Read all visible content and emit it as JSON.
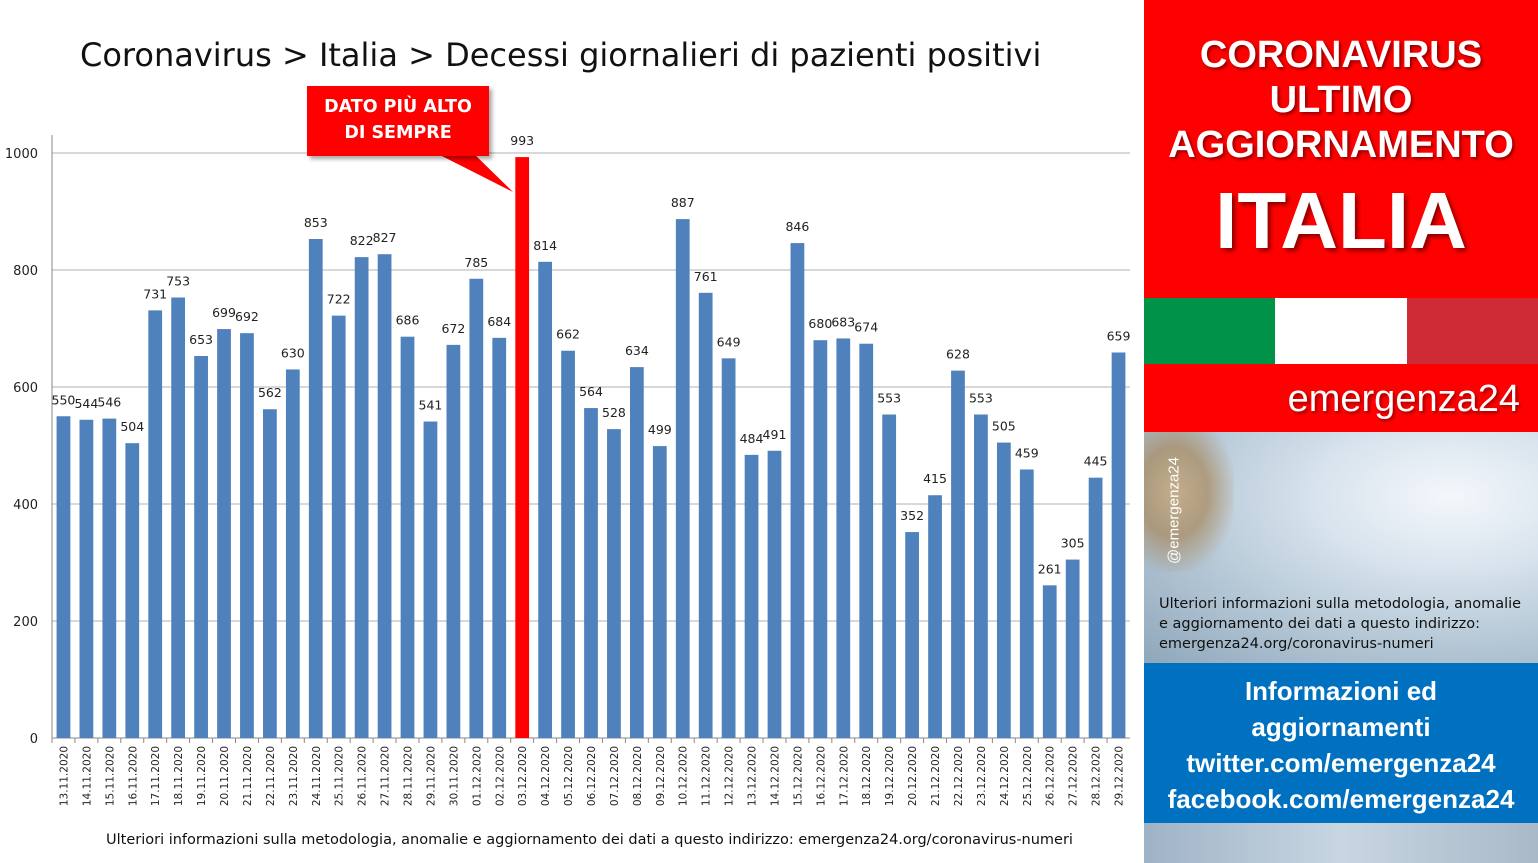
{
  "title": "Coronavirus > Italia > Decessi giornalieri di pazienti positivi",
  "callout": {
    "line1": "DATO PIÙ ALTO",
    "line2": "DI SEMPRE"
  },
  "footnote": "Ulteriori informazioni sulla metodologia, anomalie e aggiornamento dei dati a questo indirizzo: emergenza24.org/coronavirus-numeri",
  "sidebar": {
    "heading_line1": "CORONAVIRUS",
    "heading_line2": "ULTIMO",
    "heading_line3": "AGGIORNAMENTO",
    "country": "ITALIA",
    "brand": "emergenza24",
    "handle": "@emergenza24",
    "info_line1": "Ulteriori informazioni sulla metodologia, anomalie",
    "info_line2": "e aggiornamento dei dati a questo indirizzo:",
    "info_line3": "emergenza24.org/coronavirus-numeri",
    "blue_line1": "Informazioni ed",
    "blue_line2": "aggiornamenti",
    "blue_line3": "twitter.com/emergenza24",
    "blue_line4": "facebook.com/emergenza24"
  },
  "colors": {
    "bar": "#4f81bd",
    "highlight_bar": "#ff0000",
    "accent_red": "#ff0000",
    "accent_blue": "#0070c0",
    "flag_green": "#009246",
    "flag_white": "#ffffff",
    "flag_red": "#ce2b37"
  },
  "chart_data": {
    "type": "bar",
    "title": "Coronavirus > Italia > Decessi giornalieri di pazienti positivi",
    "xlabel": "",
    "ylabel": "",
    "ylim": [
      0,
      1000
    ],
    "yticks": [
      0,
      200,
      400,
      600,
      800,
      1000
    ],
    "grid": true,
    "legend": "none",
    "highlight_category": "03.12.2020",
    "categories": [
      "13.11.2020",
      "14.11.2020",
      "15.11.2020",
      "16.11.2020",
      "17.11.2020",
      "18.11.2020",
      "19.11.2020",
      "20.11.2020",
      "21.11.2020",
      "22.11.2020",
      "23.11.2020",
      "24.11.2020",
      "25.11.2020",
      "26.11.2020",
      "27.11.2020",
      "28.11.2020",
      "29.11.2020",
      "30.11.2020",
      "01.12.2020",
      "02.12.2020",
      "03.12.2020",
      "04.12.2020",
      "05.12.2020",
      "06.12.2020",
      "07.12.2020",
      "08.12.2020",
      "09.12.2020",
      "10.12.2020",
      "11.12.2020",
      "12.12.2020",
      "13.12.2020",
      "14.12.2020",
      "15.12.2020",
      "16.12.2020",
      "17.12.2020",
      "18.12.2020",
      "19.12.2020",
      "20.12.2020",
      "21.12.2020",
      "22.12.2020",
      "23.12.2020",
      "24.12.2020",
      "25.12.2020",
      "26.12.2020",
      "27.12.2020",
      "28.12.2020",
      "29.12.2020"
    ],
    "values": [
      550,
      544,
      546,
      504,
      731,
      753,
      653,
      699,
      692,
      562,
      630,
      853,
      722,
      822,
      827,
      686,
      541,
      672,
      785,
      684,
      993,
      814,
      662,
      564,
      528,
      634,
      499,
      887,
      761,
      649,
      484,
      491,
      846,
      680,
      683,
      674,
      553,
      352,
      415,
      628,
      553,
      505,
      459,
      261,
      305,
      445,
      659
    ]
  }
}
